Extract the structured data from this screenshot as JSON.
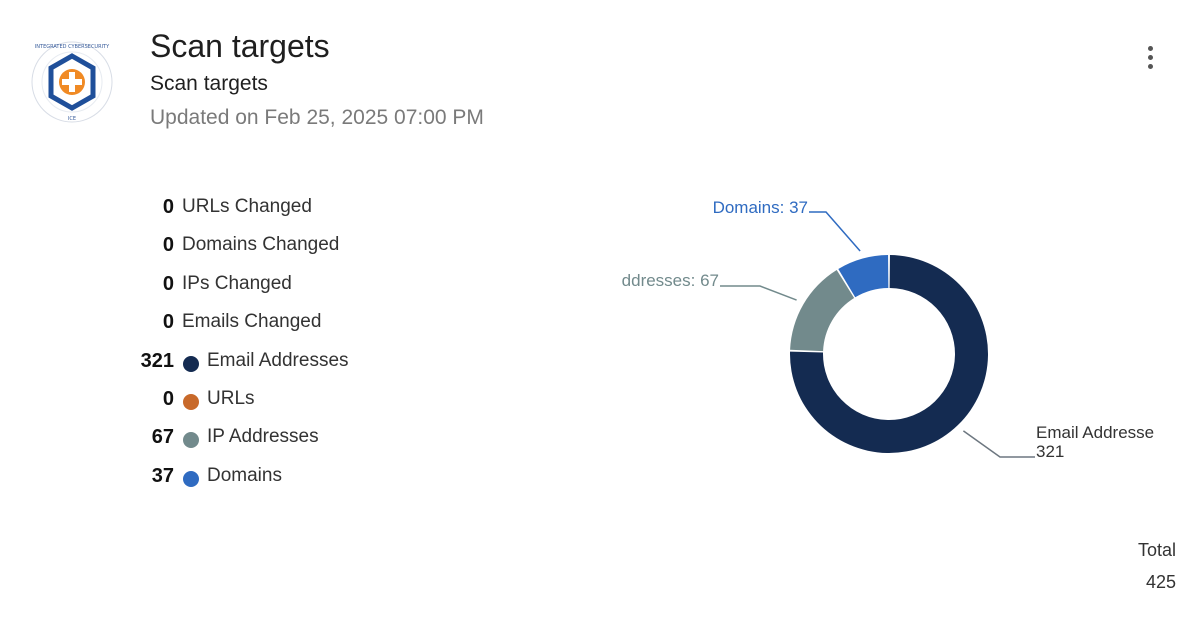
{
  "header": {
    "title": "Scan targets",
    "subtitle": "Scan targets",
    "updated": "Updated on Feb 25, 2025 07:00 PM",
    "logo_text": "INTEGRATED CYBERSECURITY ENGINE · ICE"
  },
  "stats": [
    {
      "count": "0",
      "label": "URLs Changed",
      "color": null
    },
    {
      "count": "0",
      "label": "Domains Changed",
      "color": null
    },
    {
      "count": "0",
      "label": "IPs Changed",
      "color": null
    },
    {
      "count": "0",
      "label": "Emails Changed",
      "color": null
    },
    {
      "count": "321",
      "label": "Email Addresses",
      "color": "#142b51"
    },
    {
      "count": "0",
      "label": "URLs",
      "color": "#c8692a"
    },
    {
      "count": "67",
      "label": "IP Addresses",
      "color": "#728a8c"
    },
    {
      "count": "37",
      "label": "Domains",
      "color": "#2f6bc1"
    }
  ],
  "chart_data": {
    "type": "pie",
    "donut": true,
    "slices": [
      {
        "label": "Email Addresses",
        "value": 321,
        "color": "#142b51",
        "callout": "Email Addresse",
        "callout_value": "321"
      },
      {
        "label": "IP Addresses",
        "value": 67,
        "color": "#728a8c",
        "callout": "ddresses: 67"
      },
      {
        "label": "Domains",
        "value": 37,
        "color": "#2f6bc1",
        "callout": "Domains: 37"
      }
    ],
    "total_label": "Total",
    "total_value": "425"
  }
}
